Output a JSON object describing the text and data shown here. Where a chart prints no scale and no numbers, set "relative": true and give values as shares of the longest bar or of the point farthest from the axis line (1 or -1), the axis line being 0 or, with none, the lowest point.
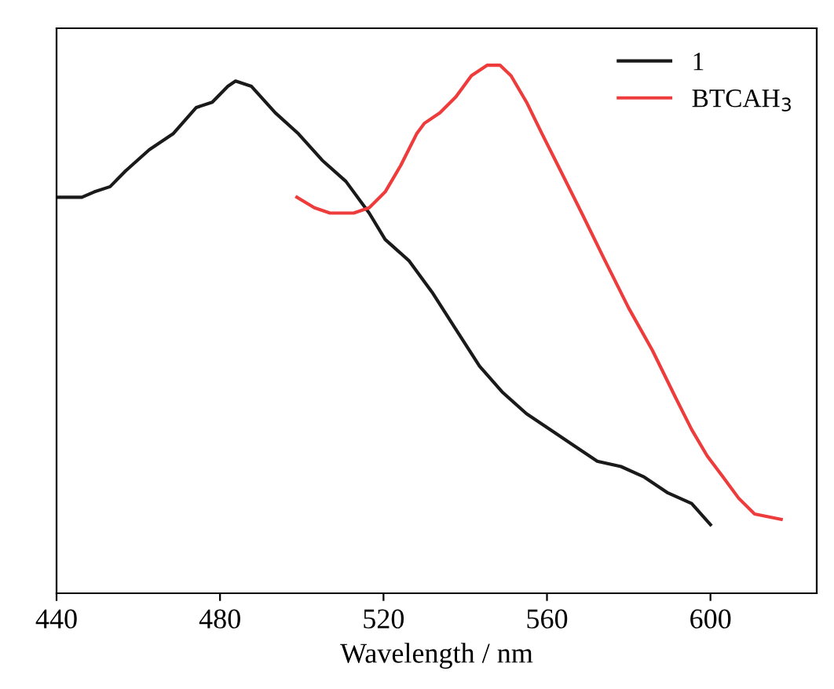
{
  "chart_data": {
    "type": "line",
    "xlabel": "Wavelength / nm",
    "relative": true,
    "xlim": [
      440,
      626
    ],
    "xticks": [
      440,
      480,
      520,
      560,
      600
    ],
    "tick_labels": "x",
    "legend": "top right",
    "grid": false,
    "series": [
      {
        "name": "1",
        "color": "#1a1a1a",
        "x": [
          440,
          443.5,
          446.2,
          449.2,
          453.1,
          456.9,
          462.7,
          468.5,
          474.2,
          478.1,
          481.9,
          483.8,
          487.7,
          493.5,
          499.2,
          505,
          510.8,
          516.5,
          520.4,
          526.2,
          531.9,
          537.7,
          543.5,
          549.2,
          555,
          560.8,
          566.5,
          572.3,
          578.1,
          583.8,
          589.6,
          595.4,
          600
        ],
        "values": [
          0.75,
          0.75,
          0.75,
          0.76,
          0.77,
          0.8,
          0.84,
          0.87,
          0.92,
          0.93,
          0.96,
          0.97,
          0.96,
          0.91,
          0.87,
          0.82,
          0.78,
          0.72,
          0.67,
          0.63,
          0.57,
          0.5,
          0.43,
          0.38,
          0.34,
          0.31,
          0.28,
          0.25,
          0.24,
          0.22,
          0.19,
          0.17,
          0.13
        ]
      },
      {
        "name": "BTCAH$_{3}$",
        "color": "#ee3b3b",
        "x": [
          498.8,
          503.1,
          506.9,
          512.7,
          516.5,
          520.4,
          524.2,
          528.1,
          530,
          533.8,
          537.7,
          541.5,
          545.4,
          548.5,
          551.2,
          555,
          558.8,
          562.7,
          568.5,
          574.2,
          580,
          585.8,
          591.5,
          595.4,
          599.2,
          603.1,
          606.9,
          610.8,
          617.3
        ],
        "values": [
          0.75,
          0.73,
          0.72,
          0.72,
          0.73,
          0.76,
          0.81,
          0.87,
          0.89,
          0.91,
          0.94,
          0.98,
          1.0,
          1.0,
          0.98,
          0.93,
          0.87,
          0.81,
          0.72,
          0.63,
          0.54,
          0.46,
          0.37,
          0.31,
          0.26,
          0.22,
          0.18,
          0.15,
          0.14
        ]
      }
    ]
  }
}
